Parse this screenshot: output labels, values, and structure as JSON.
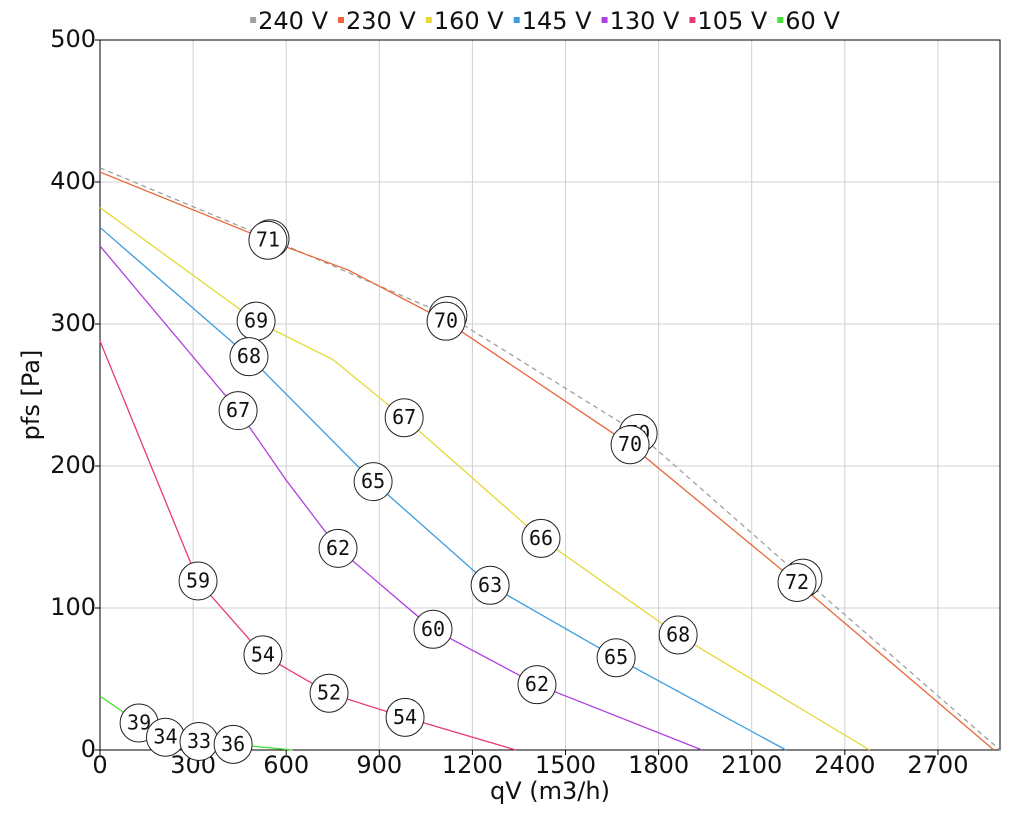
{
  "chart_data": {
    "type": "line",
    "xlabel": "qV (m3/h)",
    "ylabel": "pfs [Pa]",
    "xlim": [
      0,
      2900
    ],
    "ylim": [
      0,
      500
    ],
    "xticks": [
      0,
      300,
      600,
      900,
      1200,
      1500,
      1800,
      2100,
      2400,
      2700
    ],
    "yticks": [
      0,
      100,
      200,
      300,
      400,
      500
    ],
    "grid": true,
    "legend": "top",
    "series": [
      {
        "name": "240 V",
        "color": "#a0a0a0",
        "dashed": true,
        "x": [
          0,
          548,
          1121,
          1734,
          2265,
          2900
        ],
        "values": [
          410,
          360,
          306,
          223,
          121,
          0
        ],
        "markers": {
          "x": [
            548,
            1121,
            1734,
            2265
          ],
          "y": [
            360,
            306,
            223,
            121
          ],
          "levels": [
            71,
            70,
            70,
            72
          ]
        }
      },
      {
        "name": "230 V",
        "color": "#e8683a",
        "x": [
          0,
          541,
          800,
          1115,
          1708,
          2246,
          2880
        ],
        "values": [
          407,
          359,
          338,
          302,
          215,
          118,
          0
        ],
        "markers": {
          "x": [
            541,
            1115,
            1708,
            2246
          ],
          "y": [
            359,
            302,
            215,
            118
          ],
          "levels": [
            71,
            70,
            70,
            72
          ]
        }
      },
      {
        "name": "160 V",
        "color": "#e4d838",
        "x": [
          0,
          503,
          750,
          980,
          1421,
          1863,
          2480
        ],
        "values": [
          382,
          302,
          275,
          234,
          149,
          81,
          0
        ],
        "markers": {
          "x": [
            503,
            980,
            1421,
            1863
          ],
          "y": [
            302,
            234,
            149,
            81
          ],
          "levels": [
            69,
            67,
            66,
            68
          ]
        }
      },
      {
        "name": "145 V",
        "color": "#3a9de0",
        "x": [
          0,
          480,
          880,
          1257,
          1663,
          2210
        ],
        "values": [
          368,
          277,
          189,
          116,
          65,
          0
        ],
        "markers": {
          "x": [
            480,
            880,
            1257,
            1663
          ],
          "y": [
            277,
            189,
            116,
            65
          ],
          "levels": [
            68,
            65,
            63,
            65
          ]
        }
      },
      {
        "name": "130 V",
        "color": "#b040e0",
        "x": [
          0,
          445,
          600,
          767,
          1073,
          1408,
          1940
        ],
        "values": [
          355,
          239,
          190,
          142,
          85,
          46,
          0
        ],
        "markers": {
          "x": [
            445,
            767,
            1073,
            1408
          ],
          "y": [
            239,
            142,
            85,
            46
          ],
          "levels": [
            67,
            62,
            60,
            62
          ]
        }
      },
      {
        "name": "105 V",
        "color": "#e83a7a",
        "x": [
          0,
          316,
          525,
          738,
          983,
          1340
        ],
        "values": [
          288,
          119,
          67,
          40,
          23,
          0
        ],
        "markers": {
          "x": [
            316,
            525,
            738,
            983
          ],
          "y": [
            119,
            67,
            40,
            23
          ],
          "levels": [
            59,
            54,
            52,
            54
          ]
        }
      },
      {
        "name": "60 V",
        "color": "#4ae03a",
        "x": [
          0,
          126,
          211,
          319,
          429,
          620
        ],
        "values": [
          38,
          19,
          9,
          6,
          4,
          0
        ],
        "markers": {
          "x": [
            126,
            211,
            319,
            429
          ],
          "y": [
            19,
            9,
            6,
            4
          ],
          "levels": [
            39,
            34,
            33,
            36
          ]
        }
      }
    ]
  }
}
